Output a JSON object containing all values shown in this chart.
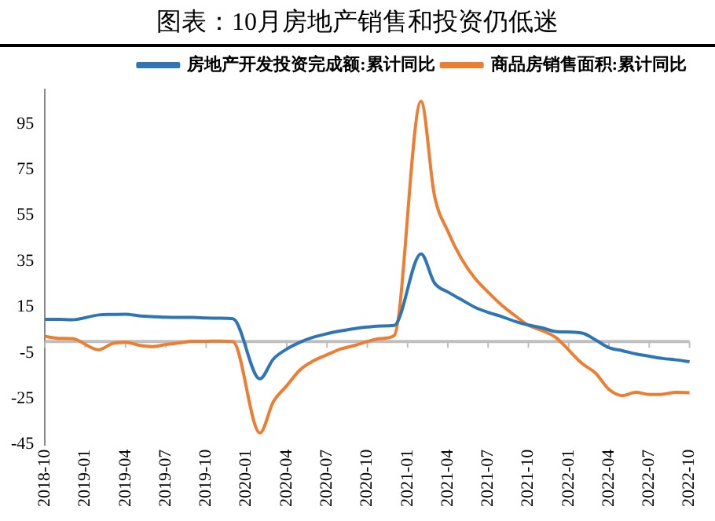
{
  "chart_data": {
    "type": "line",
    "title": "图表：10月房地产销售和投资仍低迷",
    "categories": [
      "2018-10",
      null,
      null,
      "2019-01",
      null,
      null,
      "2019-04",
      null,
      null,
      "2019-07",
      null,
      null,
      "2019-10",
      null,
      null,
      "2020-01",
      null,
      null,
      "2020-04",
      null,
      null,
      "2020-07",
      null,
      null,
      "2020-10",
      null,
      null,
      "2021-01",
      null,
      null,
      "2021-04",
      null,
      null,
      "2021-07",
      null,
      null,
      "2021-10",
      null,
      null,
      "2022-01",
      null,
      null,
      "2022-04",
      null,
      null,
      "2022-07",
      null,
      null,
      "2022-10"
    ],
    "series": [
      {
        "name": "房地产开发投资完成额:累计同比",
        "color": "#2e75b6",
        "values": [
          9.7,
          9.7,
          9.5,
          null,
          11.6,
          11.8,
          11.9,
          11.2,
          10.9,
          10.6,
          10.5,
          10.5,
          10.3,
          10.2,
          9.9,
          null,
          -16.3,
          -7.7,
          -3.3,
          -0.3,
          1.9,
          3.4,
          4.6,
          5.6,
          6.3,
          6.8,
          7.0,
          null,
          38.3,
          25.6,
          21.6,
          18.3,
          15.0,
          12.7,
          10.9,
          8.8,
          7.2,
          6.0,
          4.4,
          null,
          3.7,
          0.7,
          -2.7,
          -4.0,
          -5.4,
          -6.4,
          -7.4,
          -8.0,
          -8.8
        ]
      },
      {
        "name": "商品房销售面积:累计同比",
        "color": "#ed7d31",
        "values": [
          2.2,
          1.4,
          1.3,
          null,
          -3.6,
          -0.9,
          -0.3,
          -1.6,
          -2.2,
          -1.3,
          -0.6,
          0.1,
          0.1,
          0.2,
          -0.1,
          null,
          -39.9,
          -26.3,
          -19.3,
          -12.3,
          -8.4,
          -5.8,
          -3.3,
          -1.8,
          0.0,
          1.3,
          2.6,
          null,
          104.9,
          63.8,
          48.1,
          36.3,
          27.7,
          21.5,
          15.9,
          11.3,
          7.1,
          4.8,
          1.9,
          null,
          -9.6,
          -13.8,
          -20.9,
          -23.6,
          -22.2,
          -23.1,
          -23.0,
          -22.2,
          -22.3
        ]
      }
    ],
    "ylim": [
      -45,
      110
    ],
    "yticks": [
      -45,
      -25,
      -5,
      15,
      35,
      55,
      75,
      95
    ],
    "ref_lines": [
      {
        "axis": "y",
        "value": 0,
        "color": "#bfbfbf"
      }
    ],
    "grid": false,
    "legend": "top right",
    "marker": "none",
    "line_style": "solid"
  }
}
